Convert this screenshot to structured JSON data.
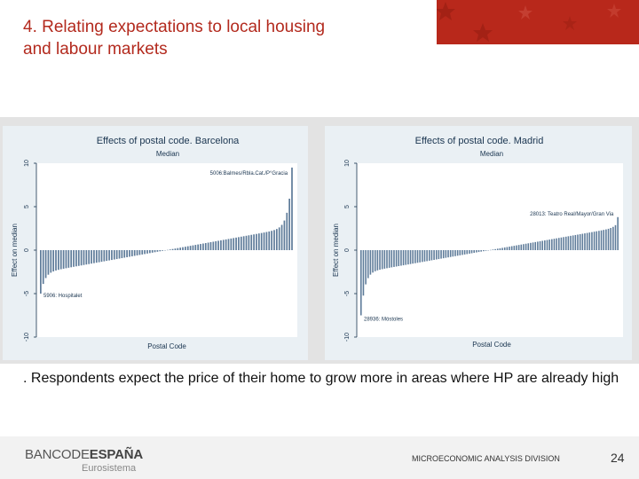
{
  "slide": {
    "title_line1": "4. Relating expectations to local housing",
    "title_line2": "and labour markets",
    "caption": ". Respondents expect the price of their home to grow more in areas where HP are already high",
    "logo_banco": "BANCODE",
    "logo_espana": "ESPAÑA",
    "logo_sub": "Eurosistema",
    "division": "MICROECONOMIC ANALYSIS DIVISION",
    "page_number": "24"
  },
  "colors": {
    "accent": "#b32a1e",
    "banner": "#b8281b",
    "bar": "#5f7c9a",
    "panel_bg": "#eaf0f4",
    "plot_bg": "#ffffff"
  },
  "chart_data": [
    {
      "type": "bar",
      "title": "Effects of postal code. Barcelona",
      "subtitle": "Median",
      "xlabel": "Postal Code",
      "ylabel": "Effect on median",
      "ylim": [
        -10,
        10
      ],
      "yticks": [
        -10,
        -5,
        0,
        5,
        10
      ],
      "n_bars": 100,
      "min_value": -5,
      "max_value": 9.5,
      "annotations": [
        {
          "text": "5006:Balmes/Rbla.Cat./P°Gracia",
          "value": 9.5
        },
        {
          "text": "5906: Hospitalet",
          "value": -5
        }
      ]
    },
    {
      "type": "bar",
      "title": "Effects of postal code. Madrid",
      "subtitle": "Median",
      "xlabel": "Postal Code",
      "ylabel": "Effect on median",
      "ylim": [
        -10,
        10
      ],
      "yticks": [
        -10,
        -5,
        0,
        5,
        10
      ],
      "n_bars": 110,
      "min_value": -7.5,
      "max_value": 3.8,
      "annotations": [
        {
          "text": "28013: Teatro Real/Mayor/Gran Via",
          "value": 3.8
        },
        {
          "text": "28936: Móstoles",
          "value": -7.5
        }
      ]
    }
  ]
}
